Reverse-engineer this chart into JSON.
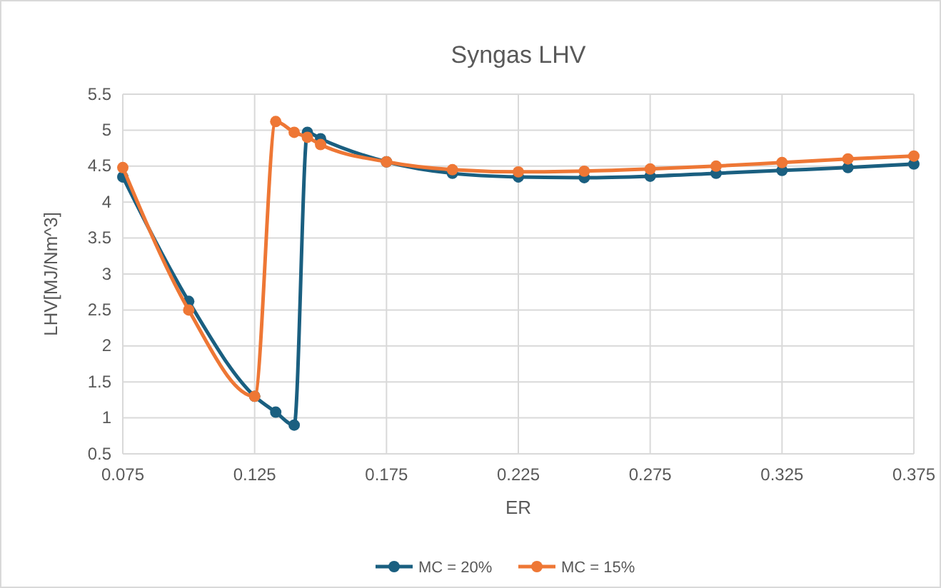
{
  "chart_data": {
    "type": "line",
    "title": "Syngas LHV",
    "xlabel": "ER",
    "ylabel": "LHV[MJ/Nm^3]",
    "xlim": [
      0.075,
      0.375
    ],
    "xticks": [
      0.075,
      0.125,
      0.175,
      0.225,
      0.275,
      0.325,
      0.375
    ],
    "ylim": [
      0.5,
      5.5
    ],
    "yticks": [
      0.5,
      1,
      1.5,
      2,
      2.5,
      3,
      3.5,
      4,
      4.5,
      5,
      5.5
    ],
    "grid": true,
    "legend": "bottom",
    "marker": "circle",
    "line_style": "solid",
    "series": [
      {
        "name": "MC = 20%",
        "color": "#1a5f80",
        "x": [
          0.075,
          0.1,
          0.125,
          0.133,
          0.14,
          0.145,
          0.15,
          0.175,
          0.2,
          0.225,
          0.25,
          0.275,
          0.3,
          0.325,
          0.35,
          0.375
        ],
        "values": [
          4.35,
          2.62,
          1.3,
          1.08,
          0.9,
          4.97,
          4.88,
          4.56,
          4.4,
          4.35,
          4.34,
          4.36,
          4.4,
          4.44,
          4.48,
          4.53
        ]
      },
      {
        "name": "MC = 15%",
        "color": "#ee7735",
        "x": [
          0.075,
          0.1,
          0.125,
          0.133,
          0.14,
          0.145,
          0.15,
          0.175,
          0.2,
          0.225,
          0.25,
          0.275,
          0.3,
          0.325,
          0.35,
          0.375
        ],
        "values": [
          4.48,
          2.5,
          1.3,
          5.12,
          4.97,
          4.9,
          4.8,
          4.56,
          4.45,
          4.42,
          4.43,
          4.46,
          4.5,
          4.55,
          4.6,
          4.64
        ]
      }
    ]
  }
}
